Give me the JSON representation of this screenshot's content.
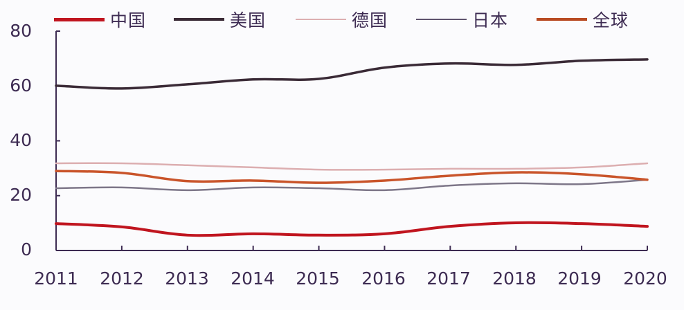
{
  "chart_data": {
    "type": "line",
    "title": "",
    "xlabel": "",
    "ylabel": "",
    "ylim": [
      0,
      80
    ],
    "yticks": [
      0,
      20,
      40,
      60,
      80
    ],
    "legend_position": "top",
    "grid": false,
    "categories": [
      "2011",
      "2012",
      "2013",
      "2014",
      "2015",
      "2016",
      "2017",
      "2018",
      "2019",
      "2020"
    ],
    "series": [
      {
        "name": "中国",
        "color": "#c0151f",
        "width": 4,
        "values": [
          9.8,
          8.6,
          5.6,
          6.1,
          5.6,
          6.1,
          8.8,
          10.1,
          9.8,
          8.8
        ]
      },
      {
        "name": "美国",
        "color": "#3a2a36",
        "width": 3.5,
        "values": [
          60.1,
          59.1,
          60.6,
          62.4,
          62.6,
          66.7,
          68.2,
          67.7,
          69.2,
          69.7
        ]
      },
      {
        "name": "德国",
        "color": "#dcaeb0",
        "width": 2.5,
        "values": [
          31.8,
          31.8,
          31.1,
          30.3,
          29.5,
          29.5,
          29.8,
          29.8,
          30.3,
          31.8
        ]
      },
      {
        "name": "日本",
        "color": "#7d7688",
        "width": 2.5,
        "values": [
          22.7,
          23.0,
          22.0,
          23.0,
          22.7,
          22.0,
          23.7,
          24.5,
          24.2,
          25.8
        ]
      },
      {
        "name": "全球",
        "color": "#c9542a",
        "width": 3.5,
        "values": [
          29.0,
          28.3,
          25.3,
          25.5,
          24.7,
          25.5,
          27.3,
          28.5,
          27.8,
          25.8
        ]
      }
    ]
  },
  "legend": {
    "items": [
      {
        "label": "中国",
        "color": "#c0151f"
      },
      {
        "label": "美国",
        "color": "#3a2a36"
      },
      {
        "label": "德国",
        "color": "#dcaeb0"
      },
      {
        "label": "日本",
        "color": "#7d7688"
      },
      {
        "label": "全球",
        "color": "#c9542a"
      }
    ]
  },
  "axis": {
    "y_labels": [
      "80",
      "60",
      "40",
      "20",
      "0"
    ],
    "x_labels": [
      "2011",
      "2012",
      "2013",
      "2014",
      "2015",
      "2016",
      "2017",
      "2018",
      "2019",
      "2020"
    ]
  }
}
